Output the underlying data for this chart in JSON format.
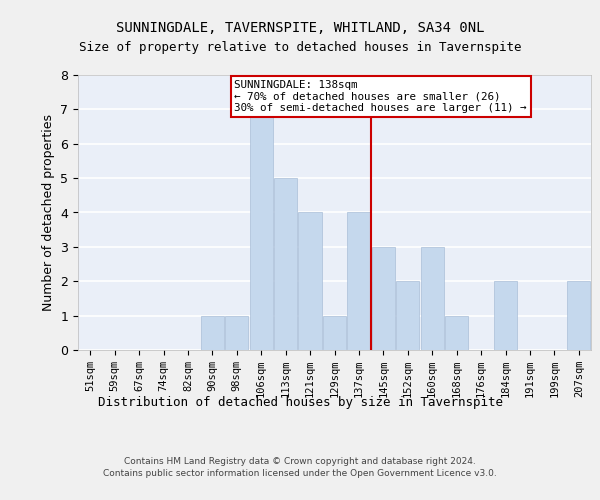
{
  "title": "SUNNINGDALE, TAVERNSPITE, WHITLAND, SA34 0NL",
  "subtitle": "Size of property relative to detached houses in Tavernspite",
  "xlabel_bottom": "Distribution of detached houses by size in Tavernspite",
  "ylabel": "Number of detached properties",
  "categories": [
    "51sqm",
    "59sqm",
    "67sqm",
    "74sqm",
    "82sqm",
    "90sqm",
    "98sqm",
    "106sqm",
    "113sqm",
    "121sqm",
    "129sqm",
    "137sqm",
    "145sqm",
    "152sqm",
    "160sqm",
    "168sqm",
    "176sqm",
    "184sqm",
    "191sqm",
    "199sqm",
    "207sqm"
  ],
  "values": [
    0,
    0,
    0,
    0,
    0,
    1,
    1,
    7,
    5,
    4,
    1,
    4,
    3,
    2,
    3,
    1,
    0,
    2,
    0,
    0,
    2
  ],
  "bar_color": "#c5d8ed",
  "bar_edgecolor": "#aabfd8",
  "reference_line_color": "#cc0000",
  "annotation_text": "SUNNINGDALE: 138sqm\n← 70% of detached houses are smaller (26)\n30% of semi-detached houses are larger (11) →",
  "ylim": [
    0,
    8
  ],
  "yticks": [
    0,
    1,
    2,
    3,
    4,
    5,
    6,
    7,
    8
  ],
  "background_color": "#eaeff8",
  "grid_color": "#ffffff",
  "footer": "Contains HM Land Registry data © Crown copyright and database right 2024.\nContains public sector information licensed under the Open Government Licence v3.0."
}
